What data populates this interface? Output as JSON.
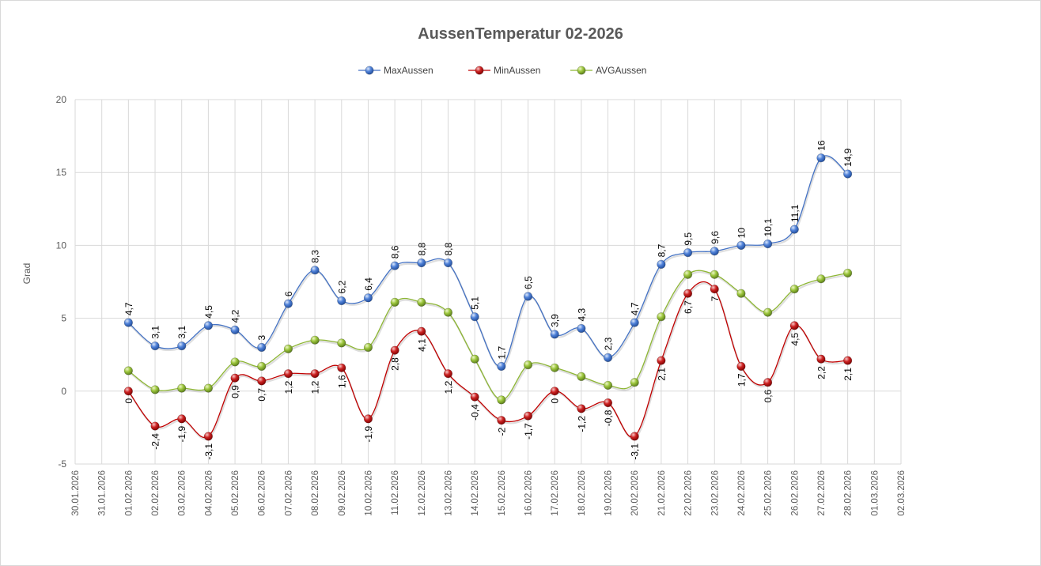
{
  "chart_data": {
    "type": "line",
    "title": "AussenTemperatur 02-2026",
    "xlabel": "",
    "ylabel": "Grad",
    "ylim": [
      -5,
      20
    ],
    "yticks": [
      -5,
      0,
      5,
      10,
      15,
      20
    ],
    "grid": true,
    "legend": "top",
    "categories": [
      "30.01.2026",
      "31.01.2026",
      "01.02.2026",
      "02.02.2026",
      "03.02.2026",
      "04.02.2026",
      "05.02.2026",
      "06.02.2026",
      "07.02.2026",
      "08.02.2026",
      "09.02.2026",
      "10.02.2026",
      "11.02.2026",
      "12.02.2026",
      "13.02.2026",
      "14.02.2026",
      "15.02.2026",
      "16.02.2026",
      "17.02.2026",
      "18.02.2026",
      "19.02.2026",
      "20.02.2026",
      "21.02.2026",
      "22.02.2026",
      "23.02.2026",
      "24.02.2026",
      "25.02.2026",
      "26.02.2026",
      "27.02.2026",
      "28.02.2026",
      "01.03.2026",
      "02.03.2026"
    ],
    "series": [
      {
        "name": "MaxAussen",
        "color": "#4472c4",
        "values": [
          null,
          null,
          4.7,
          3.1,
          3.1,
          4.5,
          4.2,
          3,
          6,
          8.3,
          6.2,
          6.4,
          8.6,
          8.8,
          8.8,
          5.1,
          1.7,
          6.5,
          3.9,
          4.3,
          2.3,
          4.7,
          8.7,
          9.5,
          9.6,
          10,
          10.1,
          11.1,
          16,
          14.9,
          null,
          null
        ],
        "labels": [
          null,
          null,
          "4,7",
          "3,1",
          "3,1",
          "4,5",
          "4,2",
          "3",
          "6",
          "8,3",
          "6,2",
          "6,4",
          "8,6",
          "8,8",
          "8,8",
          "5,1",
          "1,7",
          "6,5",
          "3,9",
          "4,3",
          "2,3",
          "4,7",
          "8,7",
          "9,5",
          "9,6",
          "10",
          "10,1",
          "11,1",
          "16",
          "14,9",
          null,
          null
        ],
        "label_position": "above"
      },
      {
        "name": "MinAussen",
        "color": "#c00000",
        "values": [
          null,
          null,
          0,
          -2.4,
          -1.9,
          -3.1,
          0.9,
          0.7,
          1.2,
          1.2,
          1.6,
          -1.9,
          2.8,
          4.1,
          1.2,
          -0.4,
          -2,
          -1.7,
          0,
          -1.2,
          -0.8,
          -3.1,
          2.1,
          6.7,
          7,
          1.7,
          0.6,
          4.5,
          2.2,
          2.1,
          null,
          null
        ],
        "labels": [
          null,
          null,
          "0",
          "-2,4",
          "-1,9",
          "-3,1",
          "0,9",
          "0,7",
          "1,2",
          "1,2",
          "1,6",
          "-1,9",
          "2,8",
          "4,1",
          "1,2",
          "-0,4",
          "-2",
          "-1,7",
          "0",
          "-1,2",
          "-0,8",
          "-3,1",
          "2,1",
          "6,7",
          "7",
          "1,7",
          "0,6",
          "4,5",
          "2,2",
          "2,1",
          null,
          null
        ],
        "label_position": "below"
      },
      {
        "name": "AVGAussen",
        "color": "#8db634",
        "values": [
          null,
          null,
          1.4,
          0.1,
          0.2,
          0.2,
          2,
          1.7,
          2.9,
          3.5,
          3.3,
          3,
          6.1,
          6.1,
          5.4,
          2.2,
          -0.6,
          1.8,
          1.6,
          1,
          0.4,
          0.6,
          5.1,
          8,
          8,
          6.7,
          5.4,
          7,
          7.7,
          8.1,
          null,
          null
        ],
        "labels": [],
        "label_position": "none"
      }
    ]
  }
}
